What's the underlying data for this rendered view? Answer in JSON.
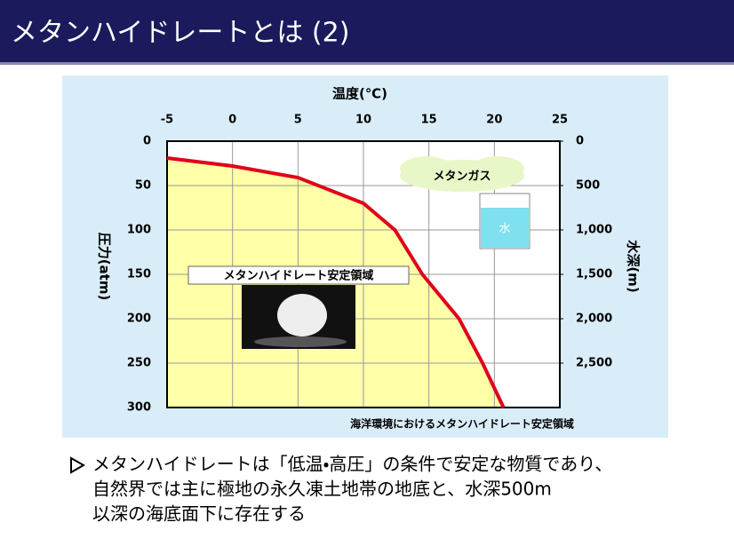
{
  "header": {
    "title": "メタンハイドレートとは (2)"
  },
  "chart_data": {
    "type": "line",
    "x_label": "温度(℃)",
    "y_label": "圧力(atm)",
    "y2_label": "水深(m)",
    "caption": "海洋環境におけるメタンハイドレート安定領域",
    "annotations": [
      "メタンハイドレート安定領域",
      "メタンガス",
      "水"
    ],
    "x": [
      -5,
      0,
      5,
      10,
      12.4,
      14.5,
      17.3,
      19.1,
      20.7
    ],
    "series": [
      {
        "color": "#e0001b",
        "values": [
          19,
          28,
          41,
          70,
          100,
          150,
          200,
          250,
          300
        ]
      }
    ],
    "area_color": "#ffffa8",
    "xlim": [
      -5,
      25
    ],
    "xticks": [
      -5,
      0,
      5,
      10,
      15,
      20,
      25
    ],
    "x_axis_position": "top",
    "ylim": [
      0,
      300
    ],
    "yticks": [
      0,
      50,
      100,
      150,
      200,
      250,
      300
    ],
    "y_reversed": true,
    "y2lim": [
      0,
      3000
    ],
    "y2ticks": [
      0,
      500,
      {
        "value": 1000,
        "label": "1,000"
      },
      {
        "value": 1500,
        "label": "1,500"
      },
      {
        "value": 2000,
        "label": "2,000"
      },
      {
        "value": 2500,
        "label": "2,500"
      }
    ],
    "grid": true
  },
  "bullet": {
    "lines": [
      "メタンハイドレートは「低温・高圧」の条件で安定な物質であり、",
      "自然界では主に極地の永久凍土地帯の地底と、水深500m",
      "以深の海底面下に存在する"
    ]
  }
}
